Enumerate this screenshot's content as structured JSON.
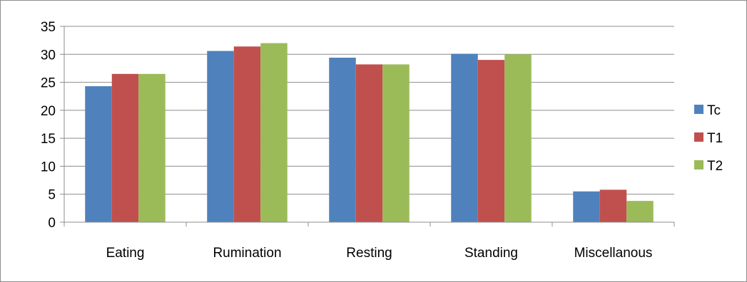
{
  "chart_data": {
    "type": "bar",
    "title": "",
    "xlabel": "",
    "ylabel": "",
    "categories": [
      "Eating",
      "Rumination",
      "Resting",
      "Standing",
      "Miscellanous"
    ],
    "series": [
      {
        "name": "Tc",
        "color": "#4F81BD",
        "values": [
          24.3,
          30.6,
          29.4,
          30.1,
          5.5
        ]
      },
      {
        "name": "T1",
        "color": "#C0504D",
        "values": [
          26.5,
          31.4,
          28.2,
          29.0,
          5.8
        ]
      },
      {
        "name": "T2",
        "color": "#9BBB59",
        "values": [
          26.5,
          32.0,
          28.2,
          30.0,
          3.8
        ]
      }
    ],
    "ylim": [
      0,
      35
    ],
    "yticks": [
      "0",
      "5",
      "10",
      "15",
      "20",
      "25",
      "30",
      "35"
    ],
    "grid": true,
    "legend_position": "right"
  }
}
